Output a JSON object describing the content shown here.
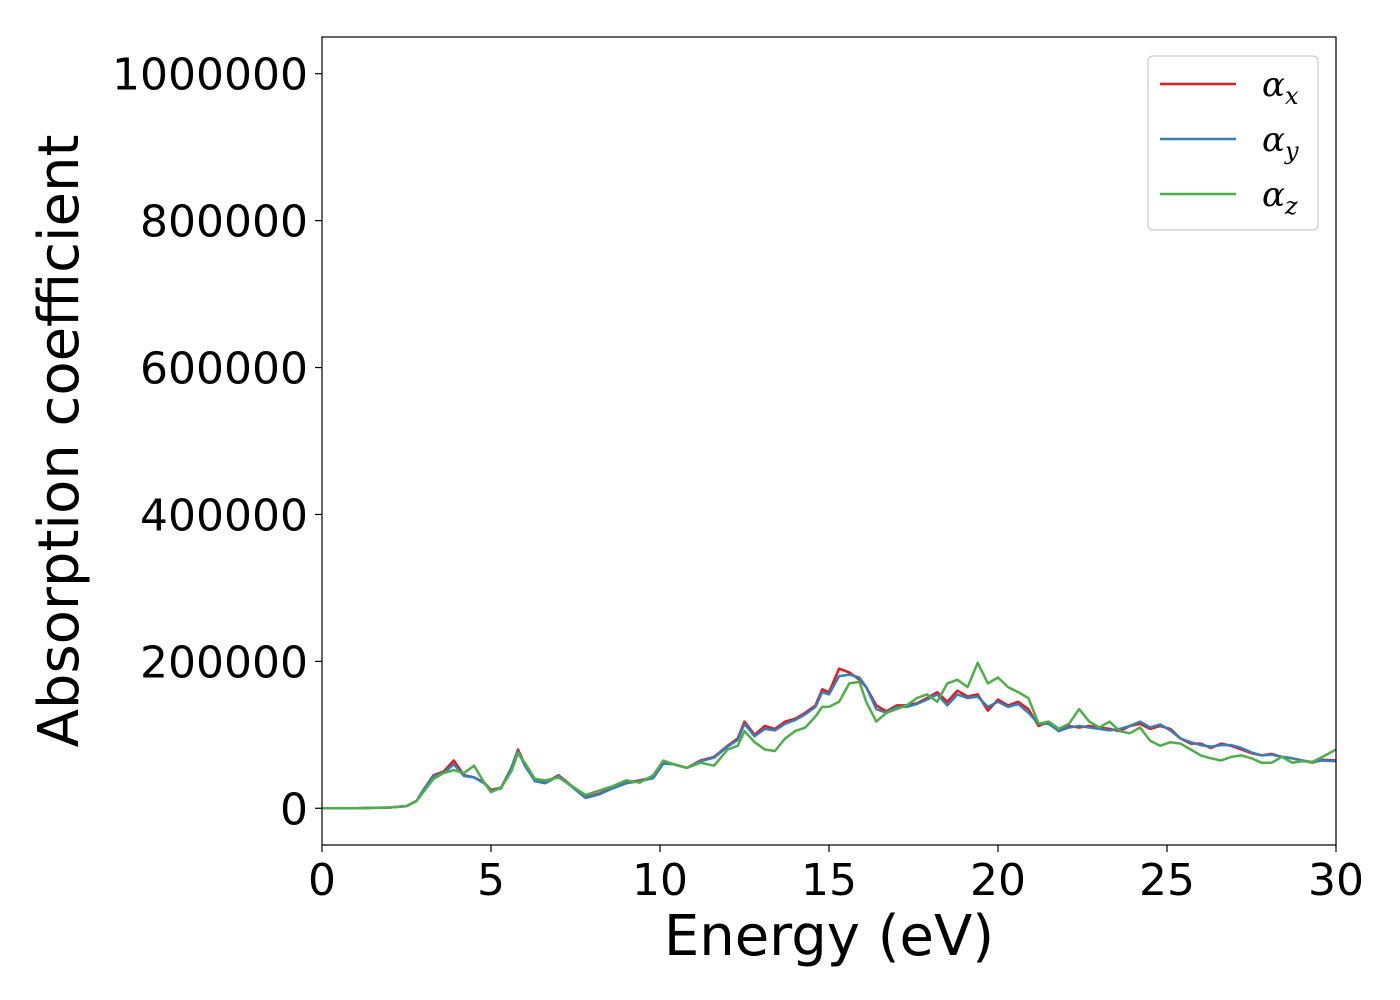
{
  "chart_data": {
    "type": "line",
    "title": "",
    "xlabel": "Energy (eV)",
    "ylabel": "Absorption coefficient",
    "xlim": [
      0,
      30
    ],
    "ylim": [
      -50000,
      1050000
    ],
    "xticks": [
      0,
      5,
      10,
      15,
      20,
      25,
      30
    ],
    "yticks": [
      0,
      200000,
      400000,
      600000,
      800000,
      1000000
    ],
    "xtick_labels": [
      "0",
      "5",
      "10",
      "15",
      "20",
      "25",
      "30"
    ],
    "ytick_labels": [
      "0",
      "200000",
      "400000",
      "600000",
      "800000",
      "1000000"
    ],
    "grid": false,
    "legend_position": "top-right",
    "series": [
      {
        "name": "α_x",
        "legend_symbol": "α",
        "legend_sub": "x",
        "color": "#e41a1c",
        "x": [
          0,
          1,
          2,
          2.5,
          2.8,
          3.0,
          3.3,
          3.6,
          3.9,
          4.2,
          4.5,
          4.8,
          5.0,
          5.3,
          5.6,
          5.8,
          6.0,
          6.3,
          6.6,
          7.0,
          7.4,
          7.8,
          8.2,
          8.6,
          9.0,
          9.4,
          9.8,
          10.1,
          10.4,
          10.8,
          11.2,
          11.6,
          12.0,
          12.3,
          12.5,
          12.8,
          13.1,
          13.4,
          13.7,
          14.0,
          14.3,
          14.6,
          14.8,
          15.0,
          15.3,
          15.6,
          15.9,
          16.1,
          16.4,
          16.7,
          17.0,
          17.3,
          17.6,
          17.9,
          18.2,
          18.5,
          18.8,
          19.1,
          19.4,
          19.7,
          20.0,
          20.3,
          20.6,
          20.9,
          21.2,
          21.5,
          21.8,
          22.1,
          22.4,
          22.7,
          23.0,
          23.3,
          23.6,
          23.9,
          24.2,
          24.5,
          24.8,
          25.1,
          25.4,
          25.7,
          26.0,
          26.3,
          26.6,
          26.9,
          27.2,
          27.5,
          27.8,
          28.1,
          28.4,
          28.7,
          29.0,
          29.3,
          29.6,
          30.0
        ],
        "values": [
          0,
          0,
          1000,
          3000,
          10000,
          25000,
          45000,
          50000,
          65000,
          45000,
          42000,
          35000,
          25000,
          28000,
          55000,
          80000,
          60000,
          38000,
          35000,
          45000,
          30000,
          15000,
          20000,
          28000,
          35000,
          38000,
          42000,
          62000,
          60000,
          55000,
          65000,
          70000,
          85000,
          95000,
          118000,
          100000,
          112000,
          108000,
          118000,
          122000,
          130000,
          140000,
          162000,
          158000,
          190000,
          185000,
          175000,
          165000,
          140000,
          132000,
          140000,
          140000,
          143000,
          150000,
          158000,
          145000,
          160000,
          152000,
          155000,
          133000,
          148000,
          140000,
          145000,
          135000,
          112000,
          118000,
          105000,
          112000,
          110000,
          112000,
          110000,
          108000,
          105000,
          112000,
          115000,
          108000,
          112000,
          108000,
          95000,
          88000,
          88000,
          82000,
          88000,
          85000,
          80000,
          75000,
          72000,
          74000,
          70000,
          68000,
          65000,
          62000,
          66000,
          65000
        ]
      },
      {
        "name": "α_y",
        "legend_symbol": "α",
        "legend_sub": "y",
        "color": "#377eb8",
        "x": [
          0,
          1,
          2,
          2.5,
          2.8,
          3.0,
          3.3,
          3.6,
          3.9,
          4.2,
          4.5,
          4.8,
          5.0,
          5.3,
          5.6,
          5.8,
          6.0,
          6.3,
          6.6,
          7.0,
          7.4,
          7.8,
          8.2,
          8.6,
          9.0,
          9.4,
          9.8,
          10.1,
          10.4,
          10.8,
          11.2,
          11.6,
          12.0,
          12.3,
          12.5,
          12.8,
          13.1,
          13.4,
          13.7,
          14.0,
          14.3,
          14.6,
          14.8,
          15.0,
          15.3,
          15.6,
          15.9,
          16.1,
          16.4,
          16.7,
          17.0,
          17.3,
          17.6,
          17.9,
          18.2,
          18.5,
          18.8,
          19.1,
          19.4,
          19.7,
          20.0,
          20.3,
          20.6,
          20.9,
          21.2,
          21.5,
          21.8,
          22.1,
          22.4,
          22.7,
          23.0,
          23.3,
          23.6,
          23.9,
          24.2,
          24.5,
          24.8,
          25.1,
          25.4,
          25.7,
          26.0,
          26.3,
          26.6,
          26.9,
          27.2,
          27.5,
          27.8,
          28.1,
          28.4,
          28.7,
          29.0,
          29.3,
          29.6,
          30.0
        ],
        "values": [
          0,
          0,
          1000,
          3000,
          10000,
          25000,
          44000,
          48000,
          60000,
          44000,
          42000,
          34000,
          24000,
          27000,
          55000,
          78000,
          58000,
          37000,
          34000,
          44000,
          29000,
          14000,
          19000,
          27000,
          34000,
          37000,
          41000,
          61000,
          60000,
          55000,
          64000,
          69000,
          84000,
          93000,
          115000,
          98000,
          108000,
          106000,
          115000,
          120000,
          128000,
          138000,
          158000,
          155000,
          180000,
          182000,
          178000,
          165000,
          135000,
          130000,
          138000,
          138000,
          142000,
          148000,
          155000,
          140000,
          155000,
          150000,
          152000,
          138000,
          145000,
          138000,
          142000,
          130000,
          115000,
          115000,
          105000,
          110000,
          112000,
          110000,
          108000,
          106000,
          108000,
          112000,
          118000,
          110000,
          114000,
          106000,
          95000,
          90000,
          86000,
          84000,
          86000,
          86000,
          82000,
          76000,
          72000,
          73000,
          70000,
          68000,
          65000,
          63000,
          65000,
          64000
        ]
      },
      {
        "name": "α_z",
        "legend_symbol": "α",
        "legend_sub": "z",
        "color": "#4daf4a",
        "x": [
          0,
          1,
          2,
          2.5,
          2.8,
          3.0,
          3.3,
          3.6,
          3.9,
          4.2,
          4.5,
          4.8,
          5.0,
          5.3,
          5.6,
          5.8,
          6.0,
          6.3,
          6.6,
          7.0,
          7.4,
          7.8,
          8.2,
          8.6,
          9.0,
          9.4,
          9.8,
          10.1,
          10.4,
          10.8,
          11.2,
          11.6,
          12.0,
          12.3,
          12.5,
          12.8,
          13.1,
          13.4,
          13.7,
          14.0,
          14.3,
          14.6,
          14.8,
          15.0,
          15.3,
          15.6,
          15.9,
          16.1,
          16.4,
          16.7,
          17.0,
          17.3,
          17.6,
          17.9,
          18.2,
          18.5,
          18.8,
          19.1,
          19.4,
          19.7,
          20.0,
          20.3,
          20.6,
          20.9,
          21.2,
          21.5,
          21.8,
          22.1,
          22.4,
          22.7,
          23.0,
          23.3,
          23.6,
          23.9,
          24.2,
          24.5,
          24.8,
          25.1,
          25.4,
          25.7,
          26.0,
          26.3,
          26.6,
          26.9,
          27.2,
          27.5,
          27.8,
          28.1,
          28.4,
          28.7,
          29.0,
          29.3,
          29.6,
          30.0
        ],
        "values": [
          0,
          0,
          1000,
          3000,
          10000,
          22000,
          40000,
          48000,
          52000,
          48000,
          58000,
          35000,
          22000,
          28000,
          50000,
          75000,
          62000,
          40000,
          38000,
          42000,
          30000,
          18000,
          24000,
          30000,
          38000,
          35000,
          45000,
          65000,
          60000,
          55000,
          62000,
          58000,
          80000,
          85000,
          105000,
          90000,
          80000,
          78000,
          95000,
          105000,
          110000,
          125000,
          138000,
          138000,
          145000,
          170000,
          172000,
          145000,
          118000,
          130000,
          135000,
          140000,
          150000,
          155000,
          145000,
          170000,
          175000,
          165000,
          198000,
          170000,
          178000,
          165000,
          158000,
          150000,
          115000,
          118000,
          108000,
          115000,
          135000,
          118000,
          110000,
          118000,
          105000,
          102000,
          110000,
          92000,
          85000,
          90000,
          88000,
          80000,
          72000,
          68000,
          65000,
          70000,
          72000,
          68000,
          62000,
          62000,
          70000,
          62000,
          64000,
          63000,
          70000,
          80000
        ]
      }
    ]
  }
}
